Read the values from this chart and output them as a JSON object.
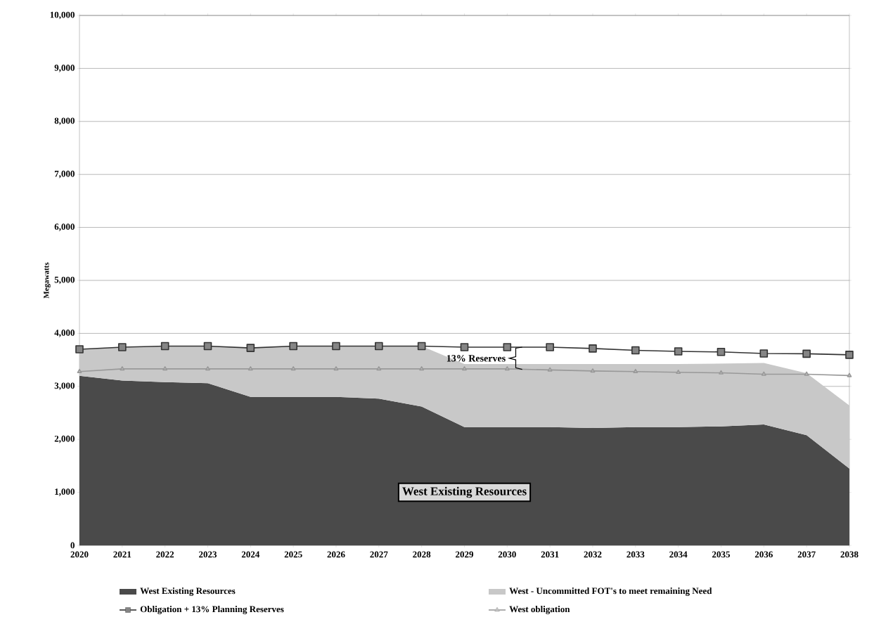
{
  "chart_data": {
    "type": "area",
    "ylabel": "Megawatts",
    "categories": [
      "2020",
      "2021",
      "2022",
      "2023",
      "2024",
      "2025",
      "2026",
      "2027",
      "2028",
      "2029",
      "2030",
      "2031",
      "2032",
      "2033",
      "2034",
      "2035",
      "2036",
      "2037",
      "2038"
    ],
    "stacked": true,
    "grid": "y",
    "legend": "bottom",
    "ylim": [
      0,
      10000
    ],
    "yticks": [
      {
        "value": 0,
        "label": "0"
      },
      {
        "value": 1000,
        "label": "1,000"
      },
      {
        "value": 2000,
        "label": "2,000"
      },
      {
        "value": 3000,
        "label": "3,000"
      },
      {
        "value": 4000,
        "label": "4,000"
      },
      {
        "value": 5000,
        "label": "5,000"
      },
      {
        "value": 6000,
        "label": "6,000"
      },
      {
        "value": 7000,
        "label": "7,000"
      },
      {
        "value": 8000,
        "label": "8,000"
      },
      {
        "value": 9000,
        "label": "9,000"
      },
      {
        "value": 10000,
        "label": "10,000"
      }
    ],
    "series": [
      {
        "name": "West Existing Resources",
        "color": "#4a4a4a",
        "values": [
          3200,
          3110,
          3080,
          3060,
          2800,
          2800,
          2800,
          2770,
          2620,
          2230,
          2230,
          2230,
          2215,
          2230,
          2230,
          2245,
          2280,
          2080,
          1450
        ]
      },
      {
        "name": "West - Uncommitted FOT's to meet remaining Need",
        "color": "#c8c8c8",
        "values": [
          500,
          630,
          680,
          700,
          925,
          960,
          960,
          990,
          1140,
          1190,
          1190,
          1190,
          1205,
          1190,
          1190,
          1185,
          1160,
          1170,
          1190
        ]
      },
      {
        "name": "Obligation + 13% Planning Reserves",
        "type": "line",
        "color": "#333333",
        "marker": "square",
        "values": [
          3700,
          3740,
          3760,
          3760,
          3725,
          3760,
          3760,
          3760,
          3760,
          3740,
          3740,
          3740,
          3715,
          3680,
          3660,
          3650,
          3620,
          3615,
          3595
        ]
      },
      {
        "name": "West obligation",
        "type": "line",
        "color": "#999999",
        "marker": "triangle",
        "values": [
          3280,
          3330,
          3330,
          3330,
          3330,
          3330,
          3330,
          3330,
          3330,
          3330,
          3330,
          3310,
          3290,
          3280,
          3265,
          3255,
          3230,
          3230,
          3205
        ]
      }
    ],
    "annotations": [
      "13% Reserves",
      "West Existing Resources"
    ]
  }
}
